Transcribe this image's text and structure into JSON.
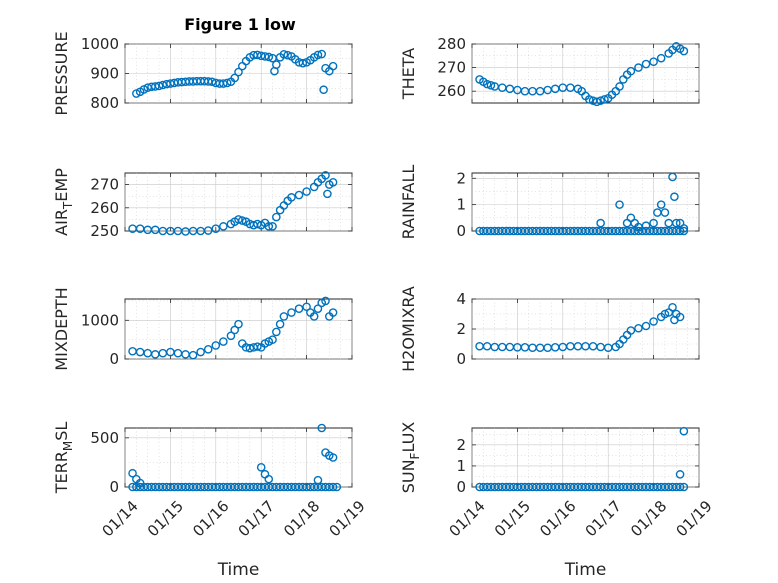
{
  "figure": {
    "title": "Figure 1 low"
  },
  "colors": {
    "marker": "#0072BD",
    "axis": "#262626",
    "grid": "#c8c8c8"
  },
  "chart_data": [
    {
      "type": "scatter",
      "id": "pressure",
      "ylabel": "PRESSURE",
      "ylabel_sub": "",
      "ylim": [
        800,
        1000
      ],
      "yticks": [
        800,
        900,
        1000
      ],
      "yminor": [
        850,
        950
      ],
      "xlim": [
        "01/14",
        "01/19"
      ],
      "xticks": [
        "01/14",
        "01/15",
        "01/16",
        "01/17",
        "01/18",
        "01/19"
      ],
      "grid": true,
      "show_xticklabels": false,
      "xlabel": "",
      "points": [
        [
          "01/14 06:00",
          832
        ],
        [
          "01/14 08:00",
          838
        ],
        [
          "01/14 10:00",
          846
        ],
        [
          "01/14 12:00",
          852
        ],
        [
          "01/14 14:00",
          855
        ],
        [
          "01/14 16:00",
          856
        ],
        [
          "01/14 18:00",
          858
        ],
        [
          "01/14 20:00",
          861
        ],
        [
          "01/14 22:00",
          864
        ],
        [
          "01/15 00:00",
          866
        ],
        [
          "01/15 02:00",
          868
        ],
        [
          "01/15 04:00",
          870
        ],
        [
          "01/15 06:00",
          871
        ],
        [
          "01/15 08:00",
          872
        ],
        [
          "01/15 10:00",
          873
        ],
        [
          "01/15 12:00",
          873
        ],
        [
          "01/15 14:00",
          874
        ],
        [
          "01/15 16:00",
          874
        ],
        [
          "01/15 18:00",
          874
        ],
        [
          "01/15 20:00",
          873
        ],
        [
          "01/15 22:00",
          872
        ],
        [
          "01/16 00:00",
          868
        ],
        [
          "01/16 02:00",
          866
        ],
        [
          "01/16 04:00",
          866
        ],
        [
          "01/16 06:00",
          868
        ],
        [
          "01/16 08:00",
          872
        ],
        [
          "01/16 10:00",
          885
        ],
        [
          "01/16 12:00",
          905
        ],
        [
          "01/16 14:00",
          925
        ],
        [
          "01/16 16:00",
          942
        ],
        [
          "01/16 18:00",
          955
        ],
        [
          "01/16 20:00",
          962
        ],
        [
          "01/16 22:00",
          963
        ],
        [
          "01/17 00:00",
          960
        ],
        [
          "01/17 02:00",
          958
        ],
        [
          "01/17 04:00",
          956
        ],
        [
          "01/17 06:00",
          952
        ],
        [
          "01/17 07:00",
          908
        ],
        [
          "01/17 08:00",
          930
        ],
        [
          "01/17 10:00",
          955
        ],
        [
          "01/17 12:00",
          965
        ],
        [
          "01/17 14:00",
          962
        ],
        [
          "01/17 16:00",
          958
        ],
        [
          "01/17 18:00",
          948
        ],
        [
          "01/17 20:00",
          938
        ],
        [
          "01/17 22:00",
          935
        ],
        [
          "01/18 00:00",
          938
        ],
        [
          "01/18 02:00",
          945
        ],
        [
          "01/18 04:00",
          955
        ],
        [
          "01/18 06:00",
          963
        ],
        [
          "01/18 08:00",
          966
        ],
        [
          "01/18 09:00",
          845
        ],
        [
          "01/18 10:00",
          918
        ],
        [
          "01/18 12:00",
          908
        ],
        [
          "01/18 14:00",
          925
        ]
      ]
    },
    {
      "type": "scatter",
      "id": "theta",
      "ylabel": "THETA",
      "ylabel_sub": "",
      "ylim": [
        255,
        280
      ],
      "yticks": [
        260,
        270,
        280
      ],
      "yminor": [
        265,
        275
      ],
      "xlim": [
        "01/14",
        "01/19"
      ],
      "xticks": [
        "01/14",
        "01/15",
        "01/16",
        "01/17",
        "01/18",
        "01/19"
      ],
      "grid": true,
      "show_xticklabels": false,
      "xlabel": "",
      "points": [
        [
          "01/14 04:00",
          265
        ],
        [
          "01/14 06:00",
          264
        ],
        [
          "01/14 08:00",
          263
        ],
        [
          "01/14 10:00",
          262.5
        ],
        [
          "01/14 12:00",
          262
        ],
        [
          "01/14 16:00",
          261.5
        ],
        [
          "01/14 20:00",
          261
        ],
        [
          "01/15 00:00",
          260.5
        ],
        [
          "01/15 04:00",
          260
        ],
        [
          "01/15 08:00",
          260
        ],
        [
          "01/15 12:00",
          260
        ],
        [
          "01/15 16:00",
          260.5
        ],
        [
          "01/15 20:00",
          261
        ],
        [
          "01/16 00:00",
          261.5
        ],
        [
          "01/16 04:00",
          261.5
        ],
        [
          "01/16 08:00",
          261
        ],
        [
          "01/16 10:00",
          260
        ],
        [
          "01/16 12:00",
          258
        ],
        [
          "01/16 14:00",
          256.5
        ],
        [
          "01/16 16:00",
          256
        ],
        [
          "01/16 18:00",
          255.5
        ],
        [
          "01/16 20:00",
          256
        ],
        [
          "01/16 22:00",
          256.5
        ],
        [
          "01/17 00:00",
          257
        ],
        [
          "01/17 02:00",
          258.5
        ],
        [
          "01/17 04:00",
          260
        ],
        [
          "01/17 06:00",
          262
        ],
        [
          "01/17 08:00",
          265
        ],
        [
          "01/17 10:00",
          267
        ],
        [
          "01/17 12:00",
          268.5
        ],
        [
          "01/17 16:00",
          270
        ],
        [
          "01/17 20:00",
          271.5
        ],
        [
          "01/18 00:00",
          272.5
        ],
        [
          "01/18 04:00",
          274
        ],
        [
          "01/18 08:00",
          276
        ],
        [
          "01/18 10:00",
          277.5
        ],
        [
          "01/18 12:00",
          279
        ],
        [
          "01/18 14:00",
          278
        ],
        [
          "01/18 16:00",
          277
        ]
      ]
    },
    {
      "type": "scatter",
      "id": "air_temp",
      "ylabel": "AIR",
      "ylabel_sub": "T",
      "ylabel_rest": "EMP",
      "ylim": [
        250,
        275
      ],
      "yticks": [
        250,
        260,
        270
      ],
      "yminor": [
        255,
        265
      ],
      "xlim": [
        "01/14",
        "01/19"
      ],
      "xticks": [
        "01/14",
        "01/15",
        "01/16",
        "01/17",
        "01/18",
        "01/19"
      ],
      "grid": true,
      "show_xticklabels": false,
      "xlabel": "",
      "points": [
        [
          "01/14 04:00",
          251
        ],
        [
          "01/14 08:00",
          251
        ],
        [
          "01/14 12:00",
          250.5
        ],
        [
          "01/14 16:00",
          250.5
        ],
        [
          "01/14 20:00",
          250
        ],
        [
          "01/15 00:00",
          250
        ],
        [
          "01/15 04:00",
          250
        ],
        [
          "01/15 08:00",
          249.8
        ],
        [
          "01/15 12:00",
          250
        ],
        [
          "01/15 16:00",
          250
        ],
        [
          "01/15 20:00",
          250.2
        ],
        [
          "01/16 00:00",
          251
        ],
        [
          "01/16 04:00",
          252
        ],
        [
          "01/16 08:00",
          253
        ],
        [
          "01/16 10:00",
          254
        ],
        [
          "01/16 12:00",
          255
        ],
        [
          "01/16 14:00",
          254.5
        ],
        [
          "01/16 16:00",
          254
        ],
        [
          "01/16 18:00",
          253
        ],
        [
          "01/16 20:00",
          252.5
        ],
        [
          "01/16 22:00",
          253
        ],
        [
          "01/17 00:00",
          252.5
        ],
        [
          "01/17 02:00",
          253.5
        ],
        [
          "01/17 04:00",
          252
        ],
        [
          "01/17 06:00",
          252
        ],
        [
          "01/17 08:00",
          256
        ],
        [
          "01/17 10:00",
          259
        ],
        [
          "01/17 12:00",
          261
        ],
        [
          "01/17 14:00",
          263
        ],
        [
          "01/17 16:00",
          264.5
        ],
        [
          "01/17 20:00",
          265.5
        ],
        [
          "01/18 00:00",
          267
        ],
        [
          "01/18 04:00",
          269
        ],
        [
          "01/18 06:00",
          271
        ],
        [
          "01/18 08:00",
          272.5
        ],
        [
          "01/18 10:00",
          274
        ],
        [
          "01/18 11:00",
          266
        ],
        [
          "01/18 12:00",
          270
        ],
        [
          "01/18 14:00",
          271
        ]
      ]
    },
    {
      "type": "scatter",
      "id": "rainfall",
      "ylabel": "RAINFALL",
      "ylabel_sub": "",
      "ylim": [
        0,
        2.2
      ],
      "yticks": [
        0,
        1,
        2
      ],
      "yminor": [
        0.5,
        1.5
      ],
      "xlim": [
        "01/14",
        "01/19"
      ],
      "xticks": [
        "01/14",
        "01/15",
        "01/16",
        "01/17",
        "01/18",
        "01/19"
      ],
      "grid": true,
      "show_xticklabels": false,
      "xlabel": "",
      "baseline": {
        "value": 0,
        "from": "01/14 04:00",
        "to": "01/18 16:00",
        "step_hours": 2
      },
      "points": [
        [
          "01/16 20:00",
          0.3
        ],
        [
          "01/17 06:00",
          1.0
        ],
        [
          "01/17 10:00",
          0.3
        ],
        [
          "01/17 12:00",
          0.5
        ],
        [
          "01/17 14:00",
          0.3
        ],
        [
          "01/17 16:00",
          0.15
        ],
        [
          "01/17 20:00",
          0.2
        ],
        [
          "01/18 00:00",
          0.3
        ],
        [
          "01/18 02:00",
          0.7
        ],
        [
          "01/18 04:00",
          1.0
        ],
        [
          "01/18 06:00",
          0.7
        ],
        [
          "01/18 08:00",
          0.3
        ],
        [
          "01/18 10:00",
          2.05
        ],
        [
          "01/18 11:00",
          1.3
        ],
        [
          "01/18 12:00",
          0.3
        ],
        [
          "01/18 14:00",
          0.3
        ],
        [
          "01/18 16:00",
          0.1
        ]
      ]
    },
    {
      "type": "scatter",
      "id": "mixdepth",
      "ylabel": "MIXDEPTH",
      "ylabel_sub": "",
      "ylim": [
        0,
        1550
      ],
      "yticks": [
        0,
        1000
      ],
      "yminor": [
        500,
        1500
      ],
      "xlim": [
        "01/14",
        "01/19"
      ],
      "xticks": [
        "01/14",
        "01/15",
        "01/16",
        "01/17",
        "01/18",
        "01/19"
      ],
      "grid": true,
      "show_xticklabels": false,
      "xlabel": "",
      "points": [
        [
          "01/14 04:00",
          200
        ],
        [
          "01/14 08:00",
          180
        ],
        [
          "01/14 12:00",
          150
        ],
        [
          "01/14 16:00",
          120
        ],
        [
          "01/14 20:00",
          150
        ],
        [
          "01/15 00:00",
          180
        ],
        [
          "01/15 04:00",
          150
        ],
        [
          "01/15 08:00",
          120
        ],
        [
          "01/15 12:00",
          100
        ],
        [
          "01/15 16:00",
          180
        ],
        [
          "01/15 20:00",
          250
        ],
        [
          "01/16 00:00",
          350
        ],
        [
          "01/16 04:00",
          450
        ],
        [
          "01/16 08:00",
          600
        ],
        [
          "01/16 10:00",
          750
        ],
        [
          "01/16 12:00",
          900
        ],
        [
          "01/16 14:00",
          400
        ],
        [
          "01/16 16:00",
          300
        ],
        [
          "01/16 18:00",
          280
        ],
        [
          "01/16 20:00",
          300
        ],
        [
          "01/16 22:00",
          320
        ],
        [
          "01/17 00:00",
          300
        ],
        [
          "01/17 02:00",
          400
        ],
        [
          "01/17 04:00",
          450
        ],
        [
          "01/17 06:00",
          500
        ],
        [
          "01/17 08:00",
          700
        ],
        [
          "01/17 10:00",
          900
        ],
        [
          "01/17 12:00",
          1100
        ],
        [
          "01/17 16:00",
          1200
        ],
        [
          "01/17 20:00",
          1300
        ],
        [
          "01/18 00:00",
          1350
        ],
        [
          "01/18 02:00",
          1200
        ],
        [
          "01/18 04:00",
          1100
        ],
        [
          "01/18 06:00",
          1300
        ],
        [
          "01/18 08:00",
          1450
        ],
        [
          "01/18 10:00",
          1500
        ],
        [
          "01/18 12:00",
          1100
        ],
        [
          "01/18 14:00",
          1200
        ]
      ]
    },
    {
      "type": "scatter",
      "id": "h2omixra",
      "ylabel": "H2OMIXRA",
      "ylabel_sub": "",
      "ylim": [
        0,
        4
      ],
      "yticks": [
        0,
        2,
        4
      ],
      "yminor": [
        1,
        3
      ],
      "xlim": [
        "01/14",
        "01/19"
      ],
      "xticks": [
        "01/14",
        "01/15",
        "01/16",
        "01/17",
        "01/18",
        "01/19"
      ],
      "grid": true,
      "show_xticklabels": false,
      "xlabel": "",
      "points": [
        [
          "01/14 04:00",
          0.85
        ],
        [
          "01/14 08:00",
          0.85
        ],
        [
          "01/14 12:00",
          0.8
        ],
        [
          "01/14 16:00",
          0.8
        ],
        [
          "01/14 20:00",
          0.8
        ],
        [
          "01/15 00:00",
          0.78
        ],
        [
          "01/15 04:00",
          0.78
        ],
        [
          "01/15 08:00",
          0.75
        ],
        [
          "01/15 12:00",
          0.75
        ],
        [
          "01/15 16:00",
          0.75
        ],
        [
          "01/15 20:00",
          0.78
        ],
        [
          "01/16 00:00",
          0.8
        ],
        [
          "01/16 04:00",
          0.85
        ],
        [
          "01/16 08:00",
          0.85
        ],
        [
          "01/16 12:00",
          0.85
        ],
        [
          "01/16 16:00",
          0.85
        ],
        [
          "01/16 20:00",
          0.8
        ],
        [
          "01/17 00:00",
          0.75
        ],
        [
          "01/17 04:00",
          0.8
        ],
        [
          "01/17 06:00",
          1.0
        ],
        [
          "01/17 08:00",
          1.3
        ],
        [
          "01/17 10:00",
          1.6
        ],
        [
          "01/17 12:00",
          1.9
        ],
        [
          "01/17 16:00",
          2.05
        ],
        [
          "01/17 20:00",
          2.2
        ],
        [
          "01/18 00:00",
          2.5
        ],
        [
          "01/18 04:00",
          2.8
        ],
        [
          "01/18 06:00",
          3.0
        ],
        [
          "01/18 08:00",
          3.1
        ],
        [
          "01/18 10:00",
          3.45
        ],
        [
          "01/18 11:00",
          2.6
        ],
        [
          "01/18 12:00",
          3.0
        ],
        [
          "01/18 14:00",
          2.8
        ]
      ]
    },
    {
      "type": "scatter",
      "id": "terr_msl",
      "ylabel": "TERR",
      "ylabel_sub": "M",
      "ylabel_rest": "SL",
      "ylim": [
        0,
        600
      ],
      "yticks": [
        0,
        500
      ],
      "yminor": [
        250
      ],
      "xlim": [
        "01/14",
        "01/19"
      ],
      "xticks": [
        "01/14",
        "01/15",
        "01/16",
        "01/17",
        "01/18",
        "01/19"
      ],
      "grid": true,
      "show_xticklabels": true,
      "xlabel": "Time",
      "baseline": {
        "value": 0,
        "from": "01/14 04:00",
        "to": "01/18 16:00",
        "step_hours": 2
      },
      "points": [
        [
          "01/14 04:00",
          140
        ],
        [
          "01/14 06:00",
          80
        ],
        [
          "01/14 08:00",
          40
        ],
        [
          "01/17 00:00",
          200
        ],
        [
          "01/17 02:00",
          130
        ],
        [
          "01/17 04:00",
          80
        ],
        [
          "01/18 06:00",
          70
        ],
        [
          "01/18 08:00",
          600
        ],
        [
          "01/18 10:00",
          350
        ],
        [
          "01/18 12:00",
          320
        ],
        [
          "01/18 14:00",
          300
        ]
      ]
    },
    {
      "type": "scatter",
      "id": "sun_flux",
      "ylabel": "SUN",
      "ylabel_sub": "F",
      "ylabel_rest": "LUX",
      "ylim": [
        0,
        2.8
      ],
      "yticks": [
        0,
        1,
        2
      ],
      "yminor": [
        0.5,
        1.5,
        2.5
      ],
      "xlim": [
        "01/14",
        "01/19"
      ],
      "xticks": [
        "01/14",
        "01/15",
        "01/16",
        "01/17",
        "01/18",
        "01/19"
      ],
      "grid": true,
      "show_xticklabels": true,
      "xlabel": "Time",
      "baseline": {
        "value": 0,
        "from": "01/14 04:00",
        "to": "01/18 16:00",
        "step_hours": 2
      },
      "points": [
        [
          "01/18 14:00",
          0.6
        ],
        [
          "01/18 16:00",
          2.65
        ]
      ]
    }
  ]
}
